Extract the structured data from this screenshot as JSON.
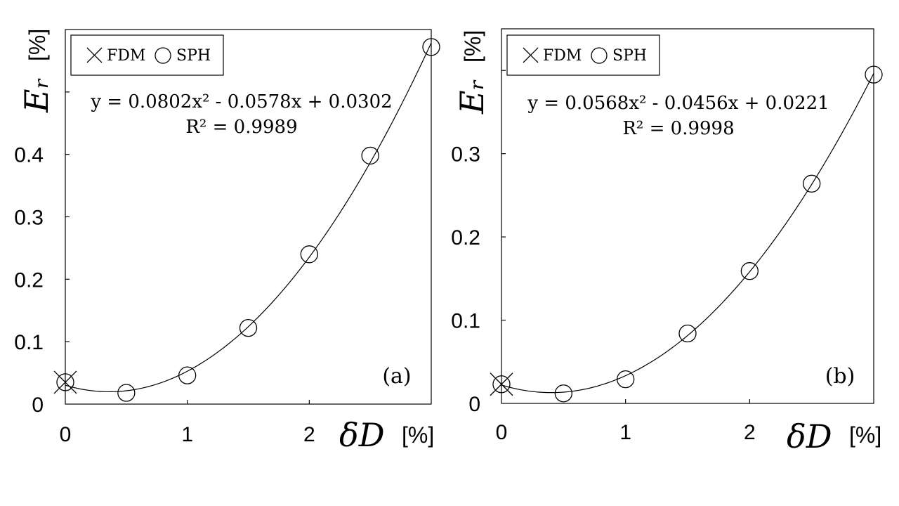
{
  "chart_data": [
    {
      "type": "scatter",
      "panel_label": "(a)",
      "xlabel_symbol": "δD",
      "xlabel_unit": "[%]",
      "ylabel_symbol": "Eᵣ",
      "ylabel_unit": "[%]",
      "x_ticks": [
        "0",
        "1",
        "2"
      ],
      "y_ticks": [
        "0",
        "0.1",
        "0.2",
        "0.3",
        "0.4"
      ],
      "xlim": [
        0,
        3
      ],
      "ylim": [
        0,
        0.6
      ],
      "legend": {
        "position": "top-left",
        "entries": [
          "FDM",
          "SPH"
        ]
      },
      "series": [
        {
          "name": "FDM",
          "marker": "cross",
          "x": [
            0
          ],
          "y": [
            0.035
          ]
        },
        {
          "name": "SPH",
          "marker": "circle",
          "x": [
            0,
            0.5,
            1,
            1.5,
            2,
            2.5,
            3
          ],
          "y": [
            0.035,
            0.018,
            0.046,
            0.122,
            0.24,
            0.398,
            0.572
          ]
        }
      ],
      "fit": {
        "a": 0.0802,
        "b": -0.0578,
        "c": 0.0302
      },
      "equation": "y = 0.0802x² - 0.0578x + 0.0302",
      "r2": "R² = 0.9989"
    },
    {
      "type": "scatter",
      "panel_label": "(b)",
      "xlabel_symbol": "δD",
      "xlabel_unit": "[%]",
      "ylabel_symbol": "Eᵣ",
      "ylabel_unit": "[%]",
      "x_ticks": [
        "0",
        "1",
        "2"
      ],
      "y_ticks": [
        "0",
        "0.1",
        "0.2",
        "0.3"
      ],
      "xlim": [
        0,
        3
      ],
      "ylim": [
        0,
        0.45
      ],
      "legend": {
        "position": "top-left",
        "entries": [
          "FDM",
          "SPH"
        ]
      },
      "series": [
        {
          "name": "FDM",
          "marker": "cross",
          "x": [
            0
          ],
          "y": [
            0.023
          ]
        },
        {
          "name": "SPH",
          "marker": "circle",
          "x": [
            0,
            0.5,
            1,
            1.5,
            2,
            2.5,
            3
          ],
          "y": [
            0.023,
            0.012,
            0.029,
            0.084,
            0.159,
            0.264,
            0.395
          ]
        }
      ],
      "fit": {
        "a": 0.0568,
        "b": -0.0456,
        "c": 0.0221
      },
      "equation": "y = 0.0568x² - 0.0456x + 0.0221",
      "r2": "R² = 0.9998"
    }
  ]
}
